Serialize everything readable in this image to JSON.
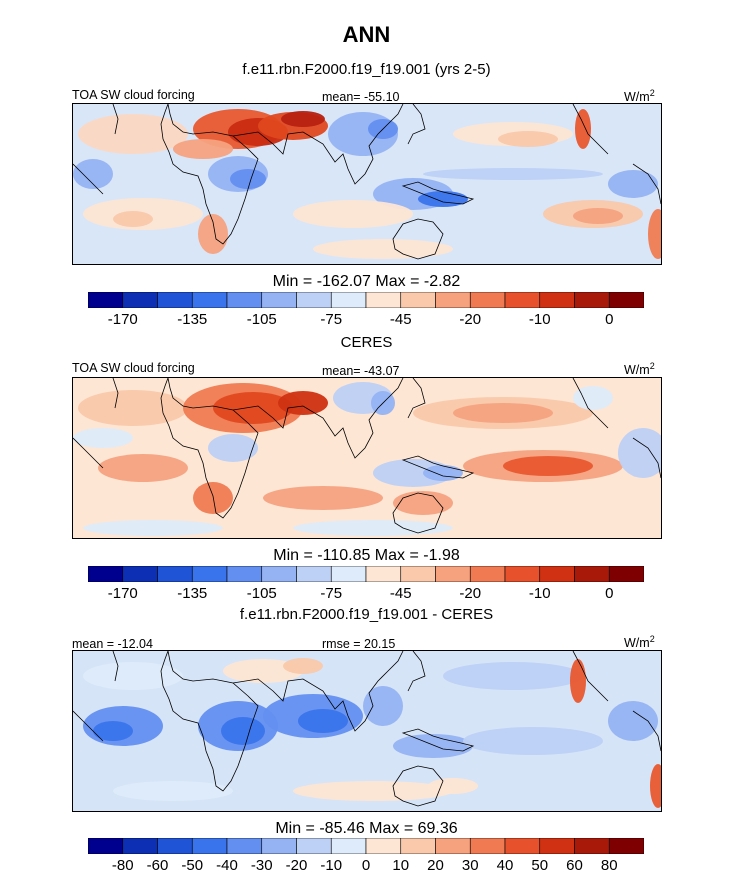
{
  "title": "ANN",
  "units_label": "W/m",
  "units_sup": "2",
  "chart_data": [
    {
      "type": "heatmap",
      "title": "f.e11.rbn.F2000.f19_f19.001 (yrs 2-5)",
      "variable_label": "TOA SW cloud forcing",
      "mean_label": "mean= -55.10",
      "minmax_label": "Min = -162.07 Max =  -2.82",
      "min": -162.07,
      "max": -2.82,
      "mean": -55.1,
      "colorbar_ticks": [
        "-170",
        "-135",
        "-105",
        "-75",
        "-45",
        "-20",
        "-10",
        "0"
      ],
      "colorbar_colors": [
        "#00008f",
        "#0c2fb4",
        "#1f54d6",
        "#3a74ec",
        "#638ff0",
        "#95b3f3",
        "#bdd0f6",
        "#deebfa",
        "#fde6d4",
        "#fac8aa",
        "#f6a27f",
        "#f07b52",
        "#e7522c",
        "#cf3112",
        "#a8190a",
        "#7f0000"
      ]
    },
    {
      "type": "heatmap",
      "title": "CERES",
      "variable_label": "TOA SW cloud forcing",
      "mean_label": "mean= -43.07",
      "minmax_label": "Min = -110.85 Max =  -1.98",
      "min": -110.85,
      "max": -1.98,
      "mean": -43.07,
      "colorbar_ticks": [
        "-170",
        "-135",
        "-105",
        "-75",
        "-45",
        "-20",
        "-10",
        "0"
      ],
      "colorbar_colors": [
        "#00008f",
        "#0c2fb4",
        "#1f54d6",
        "#3a74ec",
        "#638ff0",
        "#95b3f3",
        "#bdd0f6",
        "#deebfa",
        "#fde6d4",
        "#fac8aa",
        "#f6a27f",
        "#f07b52",
        "#e7522c",
        "#cf3112",
        "#a8190a",
        "#7f0000"
      ]
    },
    {
      "type": "heatmap",
      "title": "f.e11.rbn.F2000.f19_f19.001 - CERES",
      "mean_label": "mean = -12.04",
      "rmse_label": "rmse =  20.15",
      "minmax_label": "Min = -85.46 Max =  69.36",
      "min": -85.46,
      "max": 69.36,
      "mean": -12.04,
      "rmse": 20.15,
      "colorbar_ticks": [
        "-80",
        "-60",
        "-50",
        "-40",
        "-30",
        "-20",
        "-10",
        "0",
        "10",
        "20",
        "30",
        "40",
        "50",
        "60",
        "80"
      ],
      "colorbar_colors": [
        "#00008f",
        "#0c2fb4",
        "#1f54d6",
        "#3a74ec",
        "#638ff0",
        "#95b3f3",
        "#bdd0f6",
        "#deebfa",
        "#fde6d4",
        "#fac8aa",
        "#f6a27f",
        "#f07b52",
        "#e7522c",
        "#cf3112",
        "#a8190a",
        "#7f0000"
      ]
    }
  ]
}
